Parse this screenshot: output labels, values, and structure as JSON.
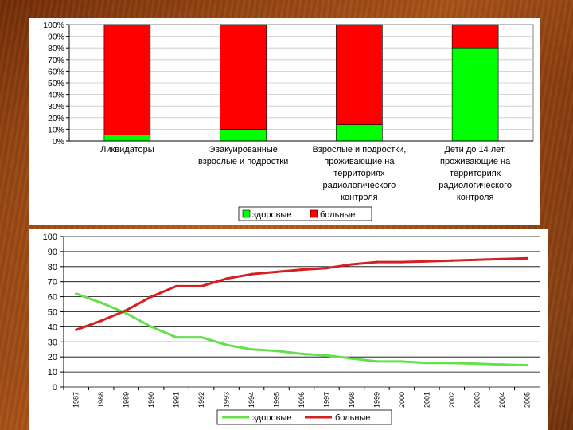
{
  "chart_data": [
    {
      "type": "bar",
      "stacked": true,
      "percent": true,
      "categories": [
        [
          "Ликвидаторы"
        ],
        [
          "Эвакуированные",
          "взрослые и подростки"
        ],
        [
          "Взрослые и подростки,",
          "проживающие на",
          "территориях",
          "радиологического",
          "контроля"
        ],
        [
          "Дети до 14 лет,",
          "проживающие на",
          "территориях",
          "радиологического",
          "контроля"
        ]
      ],
      "series": [
        {
          "name": "здоровые",
          "color": "#00ff00",
          "values": [
            5,
            10,
            14,
            80
          ]
        },
        {
          "name": "больные",
          "color": "#ff0000",
          "values": [
            95,
            90,
            86,
            20
          ]
        }
      ],
      "ylim": [
        0,
        100
      ],
      "yticks": [
        "0%",
        "10%",
        "20%",
        "30%",
        "40%",
        "50%",
        "60%",
        "70%",
        "80%",
        "90%",
        "100%"
      ],
      "legend_position": "bottom"
    },
    {
      "type": "line",
      "x": [
        "1987",
        "1988",
        "1989",
        "1990",
        "1991",
        "1992",
        "1993",
        "1994",
        "1995",
        "1996",
        "1997",
        "1998",
        "1999",
        "2000",
        "2001",
        "2002",
        "2003",
        "2004",
        "2005"
      ],
      "series": [
        {
          "name": "здоровые",
          "color": "#66e04a",
          "values": [
            62,
            56,
            49,
            40,
            33,
            33,
            28,
            25,
            24,
            22,
            21,
            19,
            17,
            17,
            16,
            16,
            15.5,
            15,
            14.5
          ]
        },
        {
          "name": "больные",
          "color": "#d42020",
          "values": [
            38,
            44,
            51,
            60,
            67,
            67,
            72,
            75,
            76.5,
            78,
            79,
            81.5,
            83,
            83,
            83.5,
            84,
            84.5,
            85,
            85.5
          ]
        }
      ],
      "ylim": [
        0,
        100
      ],
      "yticks": [
        0,
        10,
        20,
        30,
        40,
        50,
        60,
        70,
        80,
        90,
        100
      ],
      "legend_position": "bottom"
    }
  ]
}
